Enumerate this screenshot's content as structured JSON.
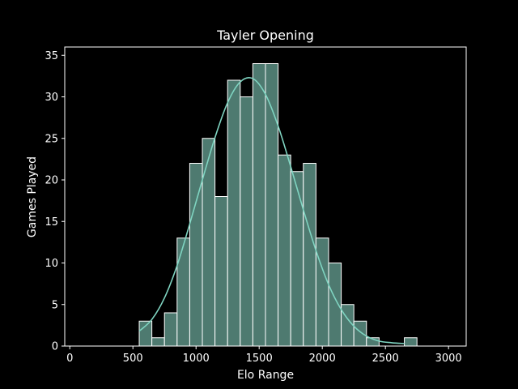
{
  "chart_data": {
    "type": "bar",
    "title": "Tayler Opening",
    "xlabel": "Elo Range",
    "ylabel": "Games Played",
    "xlim": [
      -40,
      3140
    ],
    "ylim": [
      0,
      36
    ],
    "xticks": [
      0,
      500,
      1000,
      1500,
      2000,
      2500,
      3000
    ],
    "yticks": [
      0,
      5,
      10,
      15,
      20,
      25,
      30,
      35
    ],
    "grid": false,
    "bins": [
      {
        "x0": 550,
        "x1": 650,
        "value": 3
      },
      {
        "x0": 650,
        "x1": 750,
        "value": 1
      },
      {
        "x0": 750,
        "x1": 850,
        "value": 4
      },
      {
        "x0": 850,
        "x1": 950,
        "value": 13
      },
      {
        "x0": 950,
        "x1": 1050,
        "value": 22
      },
      {
        "x0": 1050,
        "x1": 1150,
        "value": 25
      },
      {
        "x0": 1150,
        "x1": 1250,
        "value": 18
      },
      {
        "x0": 1250,
        "x1": 1350,
        "value": 32
      },
      {
        "x0": 1350,
        "x1": 1450,
        "value": 30
      },
      {
        "x0": 1450,
        "x1": 1550,
        "value": 34
      },
      {
        "x0": 1550,
        "x1": 1650,
        "value": 34
      },
      {
        "x0": 1650,
        "x1": 1750,
        "value": 23
      },
      {
        "x0": 1750,
        "x1": 1850,
        "value": 21
      },
      {
        "x0": 1850,
        "x1": 1950,
        "value": 22
      },
      {
        "x0": 1950,
        "x1": 2050,
        "value": 13
      },
      {
        "x0": 2050,
        "x1": 2150,
        "value": 10
      },
      {
        "x0": 2150,
        "x1": 2250,
        "value": 5
      },
      {
        "x0": 2250,
        "x1": 2350,
        "value": 3
      },
      {
        "x0": 2350,
        "x1": 2450,
        "value": 1
      },
      {
        "x0": 2450,
        "x1": 2550,
        "value": 0
      },
      {
        "x0": 2550,
        "x1": 2650,
        "value": 0
      },
      {
        "x0": 2650,
        "x1": 2750,
        "value": 1
      }
    ],
    "kde_curve": {
      "x": [
        550,
        650,
        750,
        850,
        950,
        1050,
        1150,
        1250,
        1350,
        1450,
        1550,
        1650,
        1750,
        1850,
        1950,
        2050,
        2150,
        2250,
        2350,
        2450,
        2550,
        2650
      ],
      "y": [
        1.8,
        3.2,
        5.8,
        9.7,
        14.7,
        20.0,
        25.1,
        29.3,
        31.8,
        32.2,
        30.3,
        26.5,
        21.6,
        16.4,
        11.5,
        7.4,
        4.4,
        2.4,
        1.2,
        0.6,
        0.4,
        0.3
      ]
    },
    "colors": {
      "background": "#000000",
      "bar_fill": "#4e7a70",
      "bar_edge": "#ffffff",
      "kde_line": "#7fd4c1",
      "axis": "#ffffff",
      "text": "#ffffff"
    }
  }
}
